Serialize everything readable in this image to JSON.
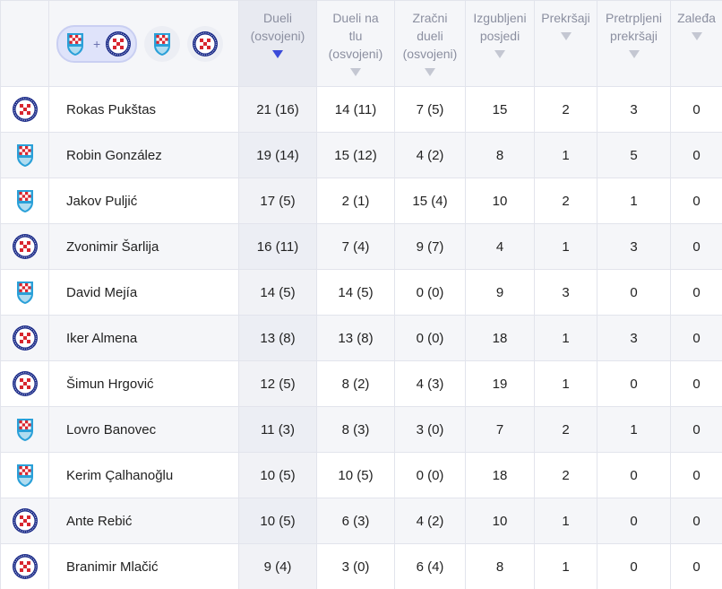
{
  "header": {
    "filter_options": [
      {
        "kind": "combined",
        "teams": [
          "team-a",
          "team-b"
        ],
        "joiner": "+"
      },
      {
        "kind": "single",
        "team": "team-a"
      },
      {
        "kind": "single",
        "team": "team-b"
      }
    ],
    "columns": [
      {
        "line1": "Dueli",
        "line2": "(osvojeni)",
        "line3": "",
        "sorted": true
      },
      {
        "line1": "Dueli na",
        "line2": "tlu",
        "line3": "(osvojeni)",
        "sorted": false
      },
      {
        "line1": "Zračni",
        "line2": "dueli",
        "line3": "(osvojeni)",
        "sorted": false
      },
      {
        "line1": "Izgubljeni",
        "line2": "posjedi",
        "line3": "",
        "sorted": false
      },
      {
        "line1": "Prekršaji",
        "line2": "",
        "line3": "",
        "sorted": false
      },
      {
        "line1": "Pretrpljeni",
        "line2": "prekršaji",
        "line3": "",
        "sorted": false
      },
      {
        "line1": "Zaleđa",
        "line2": "",
        "line3": "",
        "sorted": false
      }
    ]
  },
  "team_colors": {
    "team-a": {
      "name": "team-a-badge",
      "primary": "#d8262f",
      "secondary": "#2aa0d8"
    },
    "team-b": {
      "name": "team-b-badge",
      "primary": "#d8262f",
      "secondary": "#1d2d8a"
    }
  },
  "players": [
    {
      "team": "team-b",
      "name": "Rokas Pukštas",
      "duels": "21 (16)",
      "ground": "14 (11)",
      "aerial": "7 (5)",
      "lost": "15",
      "fouls": "2",
      "fouled": "3",
      "offsides": "0"
    },
    {
      "team": "team-a",
      "name": "Robin González",
      "duels": "19 (14)",
      "ground": "15 (12)",
      "aerial": "4 (2)",
      "lost": "8",
      "fouls": "1",
      "fouled": "5",
      "offsides": "0"
    },
    {
      "team": "team-a",
      "name": "Jakov Puljić",
      "duels": "17 (5)",
      "ground": "2 (1)",
      "aerial": "15 (4)",
      "lost": "10",
      "fouls": "2",
      "fouled": "1",
      "offsides": "0"
    },
    {
      "team": "team-b",
      "name": "Zvonimir Šarlija",
      "duels": "16 (11)",
      "ground": "7 (4)",
      "aerial": "9 (7)",
      "lost": "4",
      "fouls": "1",
      "fouled": "3",
      "offsides": "0"
    },
    {
      "team": "team-a",
      "name": "David Mejía",
      "duels": "14 (5)",
      "ground": "14 (5)",
      "aerial": "0 (0)",
      "lost": "9",
      "fouls": "3",
      "fouled": "0",
      "offsides": "0"
    },
    {
      "team": "team-b",
      "name": "Iker Almena",
      "duels": "13 (8)",
      "ground": "13 (8)",
      "aerial": "0 (0)",
      "lost": "18",
      "fouls": "1",
      "fouled": "3",
      "offsides": "0"
    },
    {
      "team": "team-b",
      "name": "Šimun Hrgović",
      "duels": "12 (5)",
      "ground": "8 (2)",
      "aerial": "4 (3)",
      "lost": "19",
      "fouls": "1",
      "fouled": "0",
      "offsides": "0"
    },
    {
      "team": "team-a",
      "name": "Lovro Banovec",
      "duels": "11 (3)",
      "ground": "8 (3)",
      "aerial": "3 (0)",
      "lost": "7",
      "fouls": "2",
      "fouled": "1",
      "offsides": "0"
    },
    {
      "team": "team-a",
      "name": "Kerim Çalhanoğlu",
      "duels": "10 (5)",
      "ground": "10 (5)",
      "aerial": "0 (0)",
      "lost": "18",
      "fouls": "2",
      "fouled": "0",
      "offsides": "0"
    },
    {
      "team": "team-b",
      "name": "Ante Rebić",
      "duels": "10 (5)",
      "ground": "6 (3)",
      "aerial": "4 (2)",
      "lost": "10",
      "fouls": "1",
      "fouled": "0",
      "offsides": "0"
    },
    {
      "team": "team-b",
      "name": "Branimir Mlačić",
      "duels": "9 (4)",
      "ground": "3 (0)",
      "aerial": "6 (4)",
      "lost": "8",
      "fouls": "1",
      "fouled": "0",
      "offsides": "0"
    }
  ]
}
